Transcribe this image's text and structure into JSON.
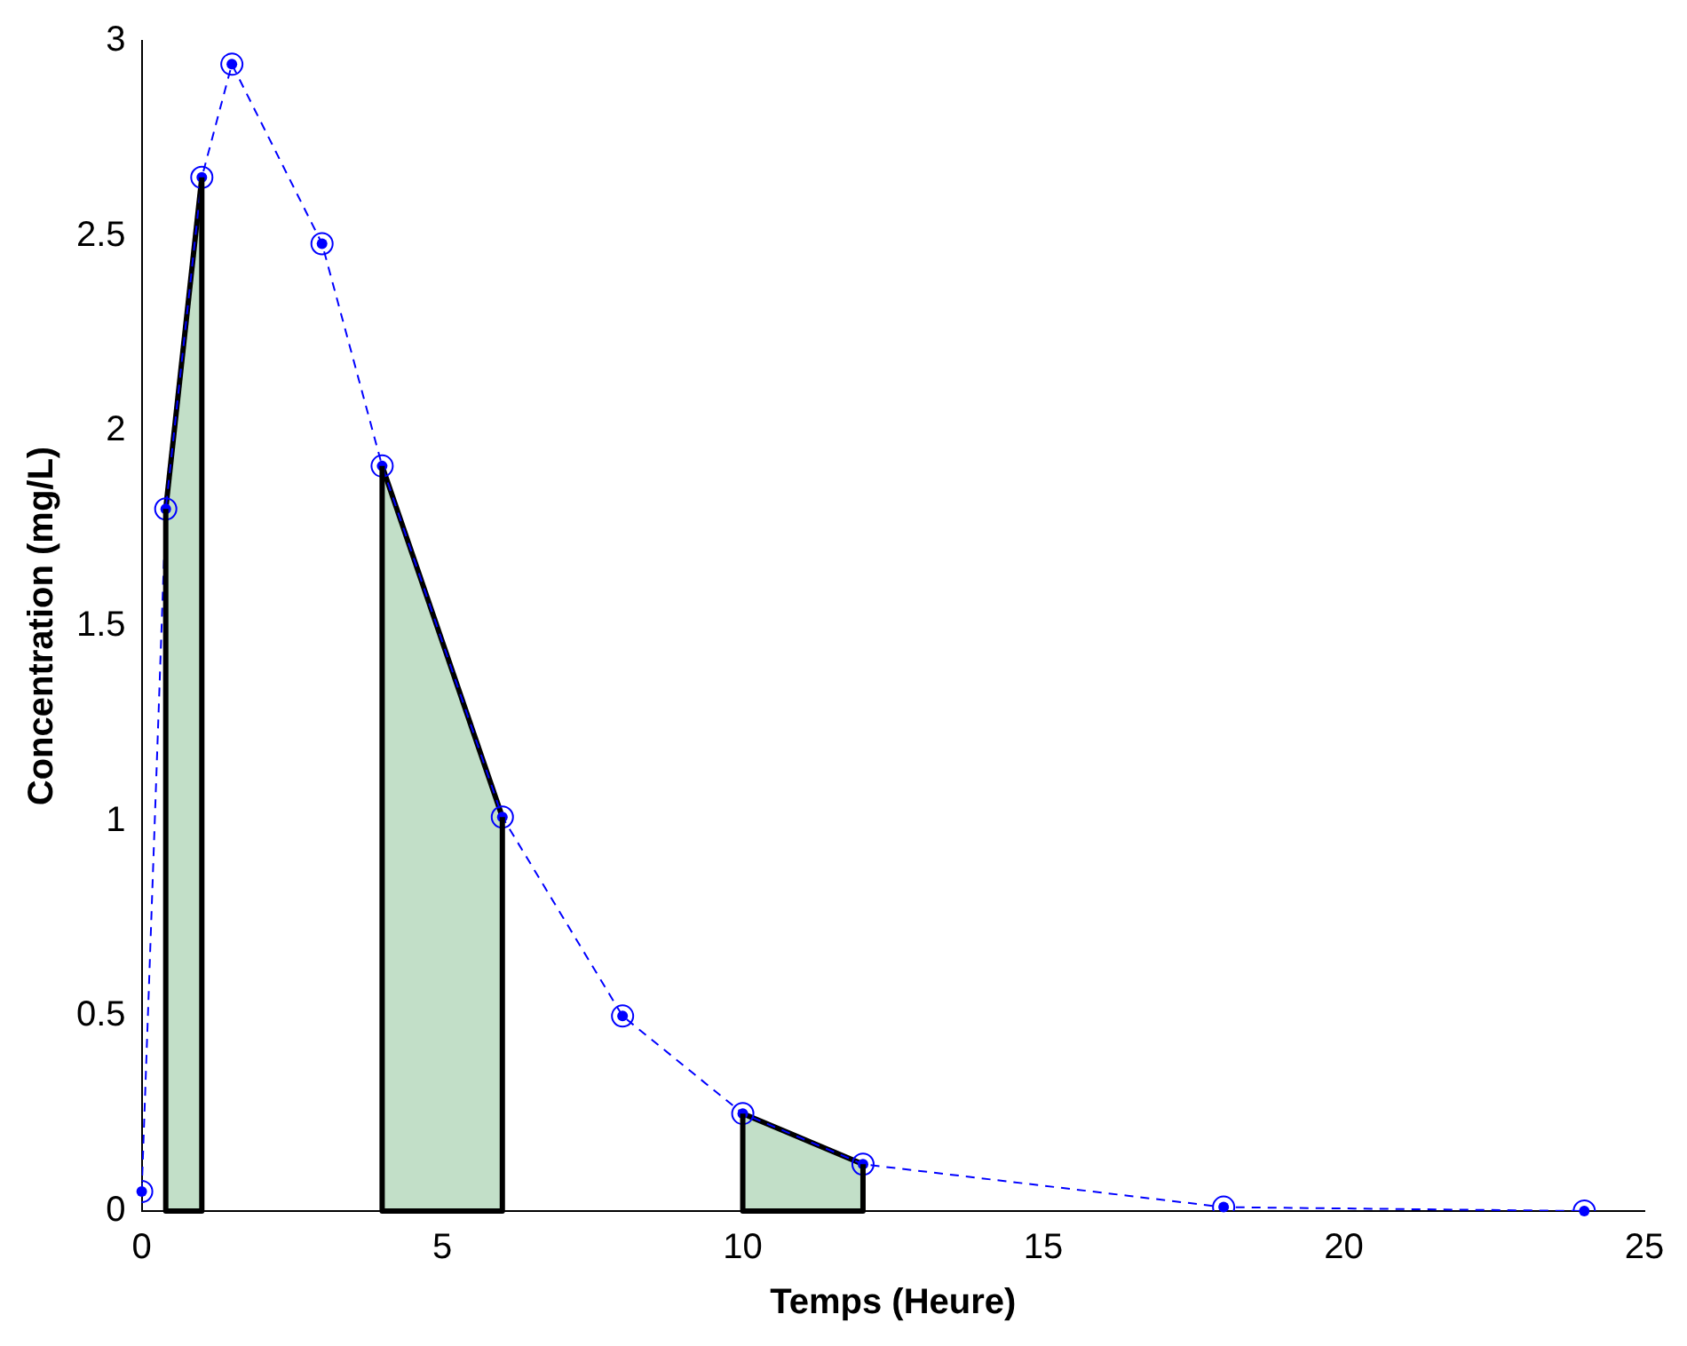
{
  "chart_data": {
    "type": "line",
    "xlabel": "Temps (Heure)",
    "ylabel": "Concentration (mg/L)",
    "x": [
      0,
      0.4,
      1,
      1.5,
      3,
      4,
      6,
      8,
      10,
      12,
      18,
      24
    ],
    "series": [
      {
        "type": "line",
        "color": "#0000ff",
        "values": [
          0.05,
          1.8,
          2.65,
          2.94,
          2.48,
          1.91,
          1.01,
          0.5,
          0.25,
          0.12,
          0.01,
          0
        ],
        "marker": "circle",
        "line_style": "dashed"
      },
      {
        "type": "area",
        "color": "#c2dfc8",
        "x": [
          0.4,
          1
        ],
        "values": [
          1.8,
          2.65
        ]
      },
      {
        "type": "area",
        "color": "#c2dfc8",
        "x": [
          4,
          6
        ],
        "values": [
          1.91,
          1.01
        ]
      },
      {
        "type": "area",
        "color": "#c2dfc8",
        "x": [
          10,
          12
        ],
        "values": [
          0.25,
          0.12
        ]
      }
    ],
    "xlim": [
      0,
      25
    ],
    "xticks": [
      0,
      5,
      10,
      15,
      20,
      25
    ],
    "ylim": [
      0,
      3
    ],
    "yticks": [
      0,
      0.5,
      1,
      1.5,
      2,
      2.5,
      3
    ],
    "grid": false,
    "legend": false
  }
}
